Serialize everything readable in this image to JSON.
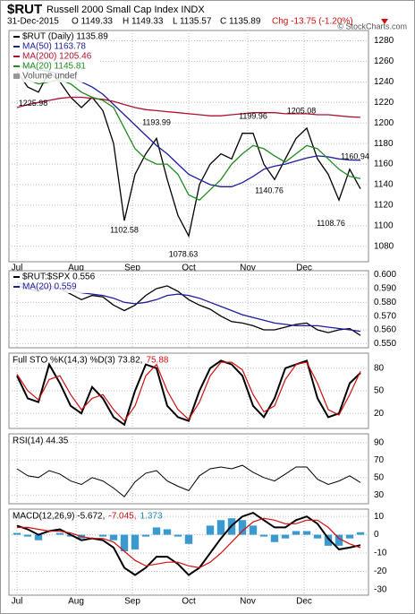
{
  "header": {
    "symbol": "$RUT",
    "name": "Russell 2000 Small Cap Index INDX",
    "date": "31-Dec-2015",
    "quote": [
      "O 1149.33",
      "H 1149.33",
      "L 1135.57",
      "C 1135.89"
    ],
    "change": "Chg -13.75 (-1.20%)",
    "credit": "© StockCharts.com"
  },
  "chart_data": [
    {
      "type": "line",
      "x": [
        0,
        4,
        8,
        12,
        16,
        20,
        24,
        28,
        32,
        36,
        40,
        44,
        48,
        52,
        56,
        60,
        64,
        68,
        72,
        76,
        80,
        84,
        88,
        92,
        96,
        100,
        104,
        108,
        112,
        116,
        120,
        124,
        128
      ],
      "xlim": [
        -3,
        131
      ],
      "xticks": [
        {
          "value": 0,
          "label": "Jul"
        },
        {
          "value": 22,
          "label": "Aug"
        },
        {
          "value": 43,
          "label": "Sep"
        },
        {
          "value": 64,
          "label": "Oct"
        },
        {
          "value": 86,
          "label": "Nov"
        },
        {
          "value": 107,
          "label": "Dec"
        }
      ],
      "show_xtick_labels": true,
      "ylim": [
        1065,
        1290
      ],
      "yticks": [
        1080,
        1100,
        1120,
        1140,
        1160,
        1180,
        1200,
        1220,
        1240,
        1260,
        1280
      ],
      "grid": true,
      "series": [
        {
          "name": "$RUT (Daily) 1135.89",
          "color": "#000000",
          "values": [
            1250,
            1235,
            1230,
            1250,
            1240,
            1225,
            1215,
            1225,
            1212,
            1180,
            1105,
            1150,
            1170,
            1185,
            1145,
            1110,
            1090,
            1140,
            1160,
            1170,
            1165,
            1190,
            1190,
            1160,
            1145,
            1165,
            1185,
            1195,
            1165,
            1150,
            1125,
            1155,
            1135.89
          ]
        },
        {
          "name": "MA(50) 1163.78",
          "color": "#1c1c9c",
          "values": [
            1255,
            1255,
            1252,
            1250,
            1248,
            1245,
            1240,
            1235,
            1228,
            1218,
            1208,
            1198,
            1188,
            1178,
            1170,
            1160,
            1150,
            1145,
            1140,
            1138,
            1138,
            1142,
            1148,
            1155,
            1158,
            1160,
            1163,
            1166,
            1168,
            1167,
            1165,
            1164,
            1163.78
          ]
        },
        {
          "name": "MA(200) 1205.46",
          "color": "#b01030",
          "values": [
            1215,
            1218,
            1220,
            1222,
            1224,
            1225,
            1225,
            1224,
            1223,
            1221,
            1218,
            1215,
            1213,
            1212,
            1211,
            1210,
            1209,
            1208,
            1207,
            1207,
            1208,
            1209,
            1210,
            1210,
            1210,
            1209,
            1209,
            1209,
            1208,
            1208,
            1207,
            1206,
            1205.46
          ]
        },
        {
          "name": "MA(20) 1145.81",
          "color": "#1f8a1f",
          "values": [
            1245,
            1242,
            1238,
            1240,
            1242,
            1238,
            1230,
            1225,
            1222,
            1215,
            1195,
            1175,
            1165,
            1160,
            1160,
            1150,
            1130,
            1125,
            1135,
            1145,
            1160,
            1170,
            1178,
            1175,
            1168,
            1162,
            1170,
            1178,
            1175,
            1165,
            1155,
            1148,
            1145.81
          ]
        }
      ],
      "legend_extra": [
        "Volume undef"
      ],
      "annotations": [
        {
          "x": 6,
          "value": 1225.98
        },
        {
          "x": 52,
          "value": 1193.99
        },
        {
          "x": 88,
          "value": 1199.96
        },
        {
          "x": 106,
          "value": 1205.08
        },
        {
          "x": 126,
          "value": 1160.94
        },
        {
          "x": 40,
          "value": 1102.58
        },
        {
          "x": 62,
          "value": 1078.63
        },
        {
          "x": 94,
          "value": 1140.76
        },
        {
          "x": 117,
          "value": 1108.76
        }
      ]
    },
    {
      "type": "line",
      "x": [
        0,
        4,
        8,
        12,
        16,
        20,
        24,
        28,
        32,
        36,
        40,
        44,
        48,
        52,
        56,
        60,
        64,
        68,
        72,
        76,
        80,
        84,
        88,
        92,
        96,
        100,
        104,
        108,
        112,
        116,
        120,
        124,
        128
      ],
      "xlim": [
        -3,
        131
      ],
      "xticks": [
        {
          "value": 0,
          "label": "Jul"
        },
        {
          "value": 22,
          "label": "Aug"
        },
        {
          "value": 43,
          "label": "Sep"
        },
        {
          "value": 64,
          "label": "Oct"
        },
        {
          "value": 86,
          "label": "Nov"
        },
        {
          "value": 107,
          "label": "Dec"
        }
      ],
      "show_xtick_labels": false,
      "ylim": [
        0.547,
        0.603
      ],
      "yticks": [
        {
          "value": 0.55,
          "label": "0.550"
        },
        {
          "value": 0.56,
          "label": "0.560"
        },
        {
          "value": 0.57,
          "label": "0.570"
        },
        {
          "value": 0.58,
          "label": "0.580"
        },
        {
          "value": 0.59,
          "label": "0.590"
        },
        {
          "value": 0.6,
          "label": "0.600"
        }
      ],
      "grid": true,
      "series": [
        {
          "name": "$RUT:$SPX 0.556",
          "color": "#000000",
          "values": [
            0.592,
            0.59,
            0.588,
            0.592,
            0.59,
            0.586,
            0.582,
            0.585,
            0.584,
            0.578,
            0.574,
            0.578,
            0.585,
            0.59,
            0.592,
            0.588,
            0.582,
            0.578,
            0.575,
            0.57,
            0.566,
            0.565,
            0.563,
            0.56,
            0.56,
            0.562,
            0.564,
            0.565,
            0.56,
            0.558,
            0.56,
            0.561,
            0.556
          ]
        },
        {
          "name": "MA(20) 0.559",
          "color": "#1c1c9c",
          "values": [
            0.594,
            0.593,
            0.591,
            0.59,
            0.59,
            0.589,
            0.587,
            0.586,
            0.585,
            0.583,
            0.58,
            0.579,
            0.58,
            0.582,
            0.585,
            0.586,
            0.585,
            0.583,
            0.58,
            0.577,
            0.574,
            0.571,
            0.569,
            0.567,
            0.565,
            0.564,
            0.563,
            0.563,
            0.563,
            0.562,
            0.561,
            0.56,
            0.559
          ]
        }
      ]
    },
    {
      "type": "line",
      "x": [
        0,
        4,
        8,
        12,
        16,
        20,
        24,
        28,
        32,
        36,
        40,
        44,
        48,
        52,
        56,
        60,
        64,
        68,
        72,
        76,
        80,
        84,
        88,
        92,
        96,
        100,
        104,
        108,
        112,
        116,
        120,
        124,
        128
      ],
      "xlim": [
        -3,
        131
      ],
      "xticks": [
        {
          "value": 0,
          "label": "Jul"
        },
        {
          "value": 22,
          "label": "Aug"
        },
        {
          "value": 43,
          "label": "Sep"
        },
        {
          "value": 64,
          "label": "Oct"
        },
        {
          "value": 86,
          "label": "Nov"
        },
        {
          "value": 107,
          "label": "Dec"
        }
      ],
      "show_xtick_labels": false,
      "title_parts": [
        {
          "text": "Full STO %K(14,3) %D(3) 73.82,",
          "color": "#000000"
        },
        {
          "text": "75.88",
          "color": "#d01010"
        }
      ],
      "ylim": [
        0,
        100
      ],
      "yticks": [
        20,
        50,
        80
      ],
      "grid": true,
      "series": [
        {
          "color": "#000000",
          "width": 2,
          "values": [
            70,
            40,
            35,
            85,
            60,
            30,
            20,
            55,
            40,
            15,
            5,
            50,
            85,
            80,
            30,
            15,
            10,
            50,
            80,
            90,
            85,
            70,
            30,
            15,
            40,
            80,
            85,
            90,
            40,
            15,
            20,
            60,
            73.82
          ]
        },
        {
          "color": "#d01010",
          "width": 1.2,
          "values": [
            72,
            50,
            38,
            65,
            70,
            45,
            25,
            40,
            45,
            25,
            10,
            30,
            70,
            85,
            50,
            25,
            12,
            35,
            70,
            88,
            88,
            78,
            45,
            22,
            30,
            65,
            85,
            88,
            60,
            25,
            18,
            45,
            75.88
          ]
        }
      ]
    },
    {
      "type": "line",
      "x": [
        0,
        4,
        8,
        12,
        16,
        20,
        24,
        28,
        32,
        36,
        40,
        44,
        48,
        52,
        56,
        60,
        64,
        68,
        72,
        76,
        80,
        84,
        88,
        92,
        96,
        100,
        104,
        108,
        112,
        116,
        120,
        124,
        128
      ],
      "xlim": [
        -3,
        131
      ],
      "xticks": [
        {
          "value": 0,
          "label": "Jul"
        },
        {
          "value": 22,
          "label": "Aug"
        },
        {
          "value": 43,
          "label": "Sep"
        },
        {
          "value": 64,
          "label": "Oct"
        },
        {
          "value": 86,
          "label": "Nov"
        },
        {
          "value": 107,
          "label": "Dec"
        }
      ],
      "show_xtick_labels": false,
      "title_parts": [
        {
          "text": "RSI(14) 44.35",
          "color": "#000000"
        }
      ],
      "ylim": [
        20,
        100
      ],
      "yticks": [
        30,
        50,
        70,
        90
      ],
      "grid": true,
      "series": [
        {
          "color": "#000000",
          "width": 1,
          "values": [
            60,
            52,
            50,
            58,
            54,
            46,
            42,
            50,
            46,
            38,
            28,
            45,
            55,
            58,
            46,
            40,
            35,
            52,
            60,
            62,
            60,
            64,
            56,
            50,
            46,
            54,
            62,
            62,
            48,
            42,
            46,
            52,
            44.35
          ]
        }
      ]
    },
    {
      "type": "line",
      "x": [
        0,
        4,
        8,
        12,
        16,
        20,
        24,
        28,
        32,
        36,
        40,
        44,
        48,
        52,
        56,
        60,
        64,
        68,
        72,
        76,
        80,
        84,
        88,
        92,
        96,
        100,
        104,
        108,
        112,
        116,
        120,
        124,
        128
      ],
      "xlim": [
        -3,
        131
      ],
      "xticks": [
        {
          "value": 0,
          "label": "Jul"
        },
        {
          "value": 22,
          "label": "Aug"
        },
        {
          "value": 43,
          "label": "Sep"
        },
        {
          "value": 64,
          "label": "Oct"
        },
        {
          "value": 86,
          "label": "Nov"
        },
        {
          "value": 107,
          "label": "Dec"
        }
      ],
      "show_xtick_labels": true,
      "title_parts": [
        {
          "text": "MACD(12,26,9) -5.672,",
          "color": "#000000"
        },
        {
          "text": "-7.045,",
          "color": "#d01010"
        },
        {
          "text": "1.373",
          "color": "#1a8aaa"
        }
      ],
      "ylim": [
        -33,
        14
      ],
      "yticks": [
        -30,
        -20,
        -10,
        0,
        10
      ],
      "grid": true,
      "series": [
        {
          "type": "bar",
          "color": "#3a9ad0",
          "values": [
            1,
            -1,
            -3,
            0,
            1,
            -1,
            -2,
            0,
            -1,
            -3,
            -9,
            -8,
            -1,
            4,
            3,
            -1,
            -5,
            0,
            5,
            8,
            9,
            8,
            5,
            -1,
            -4,
            -2,
            2,
            2,
            -2,
            -6,
            -6,
            -2,
            1.373
          ]
        },
        {
          "color": "#000000",
          "width": 2,
          "values": [
            5,
            3,
            0,
            2,
            3,
            0,
            -3,
            -2,
            -3,
            -7,
            -18,
            -22,
            -18,
            -12,
            -12,
            -16,
            -22,
            -18,
            -10,
            -2,
            5,
            10,
            12,
            8,
            4,
            4,
            8,
            10,
            6,
            -2,
            -8,
            -7,
            -5.672
          ]
        },
        {
          "color": "#d01010",
          "width": 1.2,
          "values": [
            4,
            4,
            3,
            2,
            2,
            1,
            -1,
            -2,
            -2,
            -4,
            -9,
            -14,
            -17,
            -16,
            -15,
            -15,
            -17,
            -18,
            -15,
            -10,
            -4,
            2,
            7,
            9,
            8,
            6,
            6,
            8,
            8,
            4,
            -2,
            -5,
            -7.045
          ]
        }
      ]
    }
  ]
}
